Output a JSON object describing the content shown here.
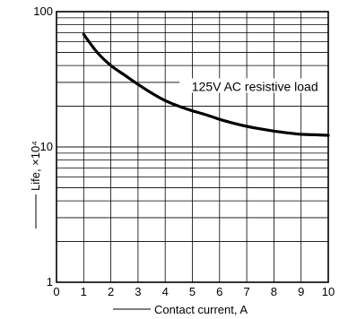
{
  "chart_data": {
    "type": "line",
    "xlabel": "Contact current, A",
    "ylabel": "Life, ×10⁴",
    "xlim": [
      0,
      10
    ],
    "ylim": [
      1,
      100
    ],
    "yscale": "log",
    "grid": true,
    "x_ticks": [
      "0",
      "1",
      "2",
      "3",
      "4",
      "5",
      "6",
      "7",
      "8",
      "9",
      "10"
    ],
    "y_ticks": [
      {
        "value": 1,
        "label": "1"
      },
      {
        "value": 10,
        "label": "10"
      },
      {
        "value": 100,
        "label": "100"
      }
    ],
    "series": [
      {
        "name": "125V AC resistive load",
        "x": [
          1,
          1.5,
          2,
          2.5,
          3,
          3.5,
          4,
          4.5,
          5,
          5.5,
          6,
          6.5,
          7,
          7.5,
          8,
          8.5,
          9,
          9.5,
          10
        ],
        "y": [
          68,
          50,
          40,
          34,
          29,
          25,
          22,
          20,
          18.5,
          17.3,
          16,
          15,
          14.2,
          13.6,
          13.1,
          12.7,
          12.4,
          12.3,
          12.2
        ]
      }
    ],
    "annotation": {
      "text": "125V AC resistive load",
      "x": 7.3,
      "y": 28
    }
  }
}
